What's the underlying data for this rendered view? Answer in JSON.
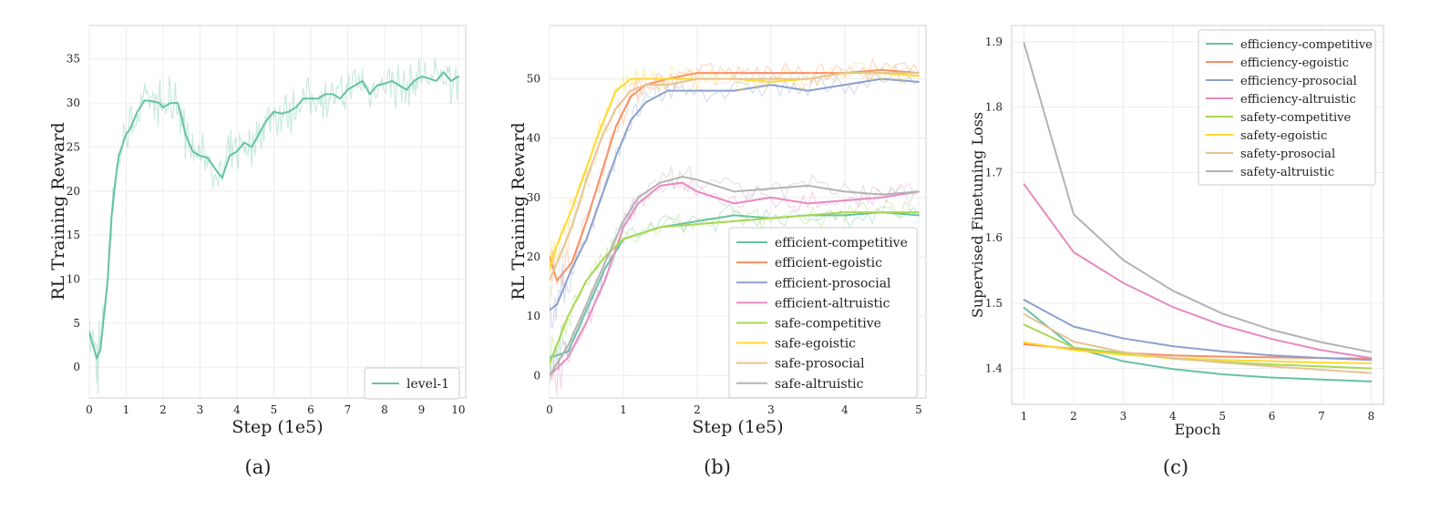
{
  "chart_data": [
    {
      "type": "line",
      "panel": "(a)",
      "caption": "(a)",
      "xlabel": "Step (1e5)",
      "ylabel": "RL Training Reward",
      "xlim": [
        0,
        10.2
      ],
      "ylim": [
        -3.5,
        38.8
      ],
      "xticks": [
        "0",
        "1",
        "2",
        "3",
        "4",
        "5",
        "6",
        "7",
        "8",
        "9",
        "10"
      ],
      "yticks": [
        "0",
        "5",
        "10",
        "15",
        "20",
        "25",
        "30",
        "35"
      ],
      "grid": true,
      "legend_position": "lower-right",
      "series": [
        {
          "name": "level-1",
          "color": "#66c2a5",
          "x": [
            0,
            0.2,
            0.3,
            0.5,
            0.6,
            0.7,
            0.8,
            1.0,
            1.1,
            1.3,
            1.5,
            1.7,
            1.9,
            2.0,
            2.2,
            2.4,
            2.5,
            2.6,
            2.8,
            3.0,
            3.2,
            3.5,
            3.6,
            3.8,
            4.0,
            4.2,
            4.4,
            4.6,
            4.8,
            5.0,
            5.2,
            5.4,
            5.6,
            5.8,
            6.0,
            6.2,
            6.4,
            6.6,
            6.8,
            7.0,
            7.2,
            7.4,
            7.6,
            7.8,
            8.0,
            8.2,
            8.4,
            8.6,
            8.8,
            9.0,
            9.2,
            9.4,
            9.6,
            9.8,
            10.0
          ],
          "y": [
            4,
            1,
            2,
            10,
            17,
            21,
            24,
            26.5,
            27,
            29,
            30.3,
            30.2,
            30.0,
            29.5,
            30.0,
            30.0,
            28.5,
            26.5,
            24.5,
            24,
            23.8,
            22.0,
            21.5,
            24,
            24.5,
            25.5,
            25,
            26.5,
            28,
            29,
            28.8,
            29,
            29.5,
            30.5,
            30.5,
            30.5,
            31,
            31,
            30.5,
            31.5,
            32,
            32.5,
            31,
            32,
            32.2,
            32.5,
            32,
            31.5,
            32.5,
            33,
            32.8,
            32.5,
            33.5,
            32.5,
            33
          ]
        }
      ]
    },
    {
      "type": "line",
      "panel": "(b)",
      "caption": "(b)",
      "xlabel": "Step (1e5)",
      "ylabel": "RL Training Reward",
      "xlim": [
        0,
        5.1
      ],
      "ylim": [
        -3.8,
        59
      ],
      "xticks": [
        "0",
        "1",
        "2",
        "3",
        "4",
        "5"
      ],
      "yticks": [
        "0",
        "10",
        "20",
        "30",
        "40",
        "50"
      ],
      "grid": true,
      "legend_position": "lower-right",
      "series": [
        {
          "name": "efficient-competitive",
          "color": "#66c2a5",
          "x": [
            0,
            0.25,
            0.5,
            0.75,
            1.0,
            1.5,
            2,
            2.5,
            3,
            3.5,
            4,
            4.5,
            5
          ],
          "y": [
            3,
            4,
            11,
            18,
            23,
            25,
            26,
            27,
            26.5,
            27,
            27,
            27.5,
            27
          ]
        },
        {
          "name": "efficient-egoistic",
          "color": "#fc8d62",
          "x": [
            0,
            0.1,
            0.3,
            0.5,
            0.7,
            0.9,
            1.1,
            1.3,
            1.6,
            2,
            2.5,
            3,
            3.5,
            4,
            4.5,
            5
          ],
          "y": [
            20,
            16,
            19,
            26,
            34,
            42,
            47,
            49,
            50,
            51,
            51,
            51,
            51,
            51,
            51.5,
            51
          ]
        },
        {
          "name": "efficient-prosocial",
          "color": "#8da0cb",
          "x": [
            0,
            0.1,
            0.3,
            0.5,
            0.7,
            0.9,
            1.1,
            1.3,
            1.6,
            2,
            2.5,
            3,
            3.5,
            4,
            4.5,
            5
          ],
          "y": [
            11,
            12,
            18,
            23,
            30,
            37,
            43,
            46,
            48,
            48,
            48,
            49,
            48,
            49,
            50,
            49.5
          ]
        },
        {
          "name": "efficient-altruistic",
          "color": "#e78ac3",
          "x": [
            0,
            0.25,
            0.5,
            0.75,
            1.0,
            1.2,
            1.5,
            1.8,
            2,
            2.5,
            3,
            3.5,
            4,
            4.5,
            5
          ],
          "y": [
            0,
            3,
            9,
            16,
            25,
            29,
            32,
            32.5,
            31,
            29,
            30,
            29,
            29.5,
            30,
            31
          ]
        },
        {
          "name": "safe-competitive",
          "color": "#a6d854",
          "x": [
            0,
            0.25,
            0.5,
            0.75,
            1.0,
            1.5,
            2,
            2.5,
            3,
            3.5,
            4,
            4.5,
            5
          ],
          "y": [
            2,
            10,
            16,
            20,
            23,
            25,
            25.5,
            26,
            26.5,
            27,
            27.5,
            27.5,
            27.5
          ]
        },
        {
          "name": "safe-egoistic",
          "color": "#ffd92f",
          "x": [
            0,
            0.1,
            0.3,
            0.5,
            0.7,
            0.9,
            1.1,
            1.3,
            1.6,
            2,
            2.5,
            3,
            3.5,
            4,
            4.5,
            5
          ],
          "y": [
            18,
            22,
            28,
            35,
            42,
            48,
            50,
            50,
            50,
            50,
            50,
            49.5,
            50,
            51,
            51,
            50.5
          ]
        },
        {
          "name": "safe-prosocial",
          "color": "#e5c494",
          "x": [
            0,
            0.1,
            0.3,
            0.5,
            0.7,
            0.9,
            1.1,
            1.3,
            1.6,
            2,
            2.5,
            3,
            3.5,
            4,
            4.5,
            5
          ],
          "y": [
            16,
            19,
            25,
            33,
            40,
            45,
            48,
            49,
            49,
            50,
            50,
            50,
            50,
            51,
            51,
            51
          ]
        },
        {
          "name": "safe-altruistic",
          "color": "#b3b3b3",
          "x": [
            0,
            0.25,
            0.5,
            0.75,
            1.0,
            1.2,
            1.5,
            1.8,
            2,
            2.5,
            3,
            3.5,
            4,
            4.5,
            5
          ],
          "y": [
            0,
            5,
            12,
            19,
            26,
            30,
            32.5,
            33.5,
            33,
            31,
            31.5,
            32,
            31,
            30.5,
            31
          ]
        }
      ]
    },
    {
      "type": "line",
      "panel": "(c)",
      "caption": "(c)",
      "xlabel": "Epoch",
      "ylabel": "Supervised Finetuning Loss",
      "xlim": [
        0.75,
        8.25
      ],
      "ylim": [
        1.345,
        1.925
      ],
      "xticks": [
        "1",
        "2",
        "3",
        "4",
        "5",
        "6",
        "7",
        "8"
      ],
      "yticks": [
        "1.4",
        "1.5",
        "1.6",
        "1.7",
        "1.8",
        "1.9"
      ],
      "grid": true,
      "legend_position": "upper-right",
      "series": [
        {
          "name": "efficiency-competitive",
          "color": "#66c2a5",
          "x": [
            1,
            2,
            3,
            4,
            5,
            6,
            7,
            8
          ],
          "y": [
            1.493,
            1.432,
            1.411,
            1.399,
            1.391,
            1.386,
            1.383,
            1.38
          ]
        },
        {
          "name": "efficiency-egoistic",
          "color": "#fc8d62",
          "x": [
            1,
            2,
            3,
            4,
            5,
            6,
            7,
            8
          ],
          "y": [
            1.437,
            1.43,
            1.424,
            1.42,
            1.418,
            1.417,
            1.416,
            1.415
          ]
        },
        {
          "name": "efficiency-prosocial",
          "color": "#8da0cb",
          "x": [
            1,
            2,
            3,
            4,
            5,
            6,
            7,
            8
          ],
          "y": [
            1.505,
            1.464,
            1.446,
            1.434,
            1.426,
            1.42,
            1.416,
            1.413
          ]
        },
        {
          "name": "efficiency-altruistic",
          "color": "#e78ac3",
          "x": [
            1,
            2,
            3,
            4,
            5,
            6,
            7,
            8
          ],
          "y": [
            1.682,
            1.578,
            1.531,
            1.494,
            1.466,
            1.445,
            1.428,
            1.416
          ]
        },
        {
          "name": "safety-competitive",
          "color": "#a6d854",
          "x": [
            1,
            2,
            3,
            4,
            5,
            6,
            7,
            8
          ],
          "y": [
            1.467,
            1.432,
            1.423,
            1.415,
            1.41,
            1.406,
            1.403,
            1.4
          ]
        },
        {
          "name": "safety-egoistic",
          "color": "#ffd92f",
          "x": [
            1,
            2,
            3,
            4,
            5,
            6,
            7,
            8
          ],
          "y": [
            1.44,
            1.428,
            1.421,
            1.416,
            1.413,
            1.411,
            1.409,
            1.408
          ]
        },
        {
          "name": "safety-prosocial",
          "color": "#e5c494",
          "x": [
            1,
            2,
            3,
            4,
            5,
            6,
            7,
            8
          ],
          "y": [
            1.483,
            1.441,
            1.425,
            1.416,
            1.409,
            1.403,
            1.398,
            1.393
          ]
        },
        {
          "name": "safety-altruistic",
          "color": "#b3b3b3",
          "x": [
            1,
            2,
            3,
            4,
            5,
            6,
            7,
            8
          ],
          "y": [
            1.898,
            1.636,
            1.566,
            1.519,
            1.484,
            1.459,
            1.44,
            1.425
          ]
        }
      ]
    }
  ]
}
